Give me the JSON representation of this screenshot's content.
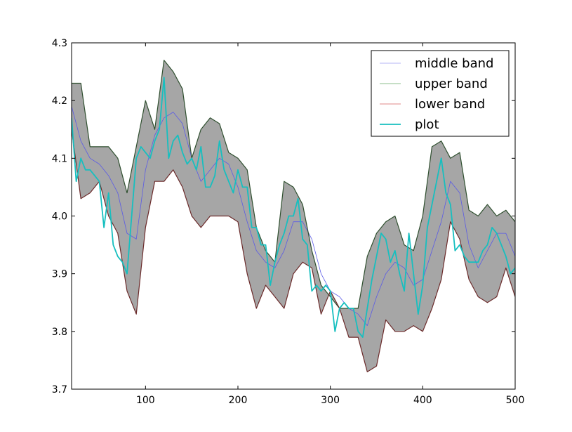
{
  "chart_data": {
    "type": "line",
    "title": "",
    "xlabel": "",
    "ylabel": "",
    "xlim": [
      20,
      500
    ],
    "ylim": [
      3.7,
      4.3
    ],
    "xticks": [
      100,
      200,
      300,
      400,
      500
    ],
    "xtick_labels": [
      "100",
      "200",
      "300",
      "400",
      "500"
    ],
    "yticks": [
      3.7,
      3.8,
      3.9,
      4.0,
      4.1,
      4.2,
      4.3
    ],
    "ytick_labels": [
      "3.7",
      "3.8",
      "3.9",
      "4.0",
      "4.1",
      "4.2",
      "4.3"
    ],
    "grid": false,
    "legend": {
      "position": "top-right",
      "entries": [
        "middle band",
        "upper band",
        "lower band",
        "plot"
      ]
    },
    "band_fill_color": "#a6a6a6",
    "series": [
      {
        "name": "middle band",
        "color": "#5b5be6",
        "x": [
          20,
          30,
          40,
          50,
          60,
          70,
          80,
          90,
          100,
          110,
          120,
          130,
          140,
          150,
          160,
          170,
          180,
          190,
          200,
          210,
          220,
          230,
          240,
          250,
          260,
          270,
          280,
          290,
          300,
          310,
          320,
          330,
          340,
          350,
          360,
          370,
          380,
          390,
          400,
          410,
          420,
          430,
          440,
          450,
          460,
          470,
          480,
          490,
          500
        ],
        "values": [
          4.19,
          4.13,
          4.1,
          4.09,
          4.07,
          4.04,
          3.97,
          3.96,
          4.08,
          4.14,
          4.17,
          4.18,
          4.16,
          4.1,
          4.06,
          4.08,
          4.1,
          4.09,
          4.05,
          3.99,
          3.94,
          3.92,
          3.91,
          3.94,
          3.99,
          3.99,
          3.96,
          3.9,
          3.87,
          3.86,
          3.84,
          3.83,
          3.81,
          3.86,
          3.9,
          3.92,
          3.91,
          3.88,
          3.89,
          3.94,
          3.99,
          4.06,
          4.04,
          3.95,
          3.91,
          3.94,
          3.97,
          3.97,
          3.93
        ]
      },
      {
        "name": "upper band",
        "color": "#2f4f2f",
        "x": [
          20,
          30,
          40,
          50,
          60,
          70,
          80,
          90,
          100,
          110,
          120,
          130,
          140,
          150,
          160,
          170,
          180,
          190,
          200,
          210,
          220,
          230,
          240,
          250,
          260,
          270,
          280,
          290,
          300,
          310,
          320,
          330,
          340,
          350,
          360,
          370,
          380,
          390,
          400,
          410,
          420,
          430,
          440,
          450,
          460,
          470,
          480,
          490,
          500
        ],
        "values": [
          4.23,
          4.23,
          4.12,
          4.12,
          4.12,
          4.1,
          4.04,
          4.12,
          4.2,
          4.15,
          4.27,
          4.25,
          4.22,
          4.1,
          4.15,
          4.17,
          4.16,
          4.11,
          4.1,
          4.08,
          3.98,
          3.94,
          3.92,
          4.06,
          4.05,
          4.02,
          3.94,
          3.88,
          3.86,
          3.84,
          3.84,
          3.84,
          3.93,
          3.97,
          3.99,
          4.0,
          3.95,
          3.94,
          4.0,
          4.12,
          4.13,
          4.1,
          4.11,
          4.01,
          4.0,
          4.02,
          4.0,
          4.01,
          3.99
        ]
      },
      {
        "name": "lower band",
        "color": "#6b2a2a",
        "x": [
          20,
          30,
          40,
          50,
          60,
          70,
          80,
          90,
          100,
          110,
          120,
          130,
          140,
          150,
          160,
          170,
          180,
          190,
          200,
          210,
          220,
          230,
          240,
          250,
          260,
          270,
          280,
          290,
          300,
          310,
          320,
          330,
          340,
          350,
          360,
          370,
          380,
          390,
          400,
          410,
          420,
          430,
          440,
          450,
          460,
          470,
          480,
          490,
          500
        ],
        "values": [
          4.15,
          4.03,
          4.04,
          4.06,
          4.0,
          3.97,
          3.87,
          3.83,
          3.98,
          4.06,
          4.06,
          4.08,
          4.05,
          4.0,
          3.98,
          4.0,
          4.0,
          4.0,
          3.99,
          3.9,
          3.84,
          3.88,
          3.86,
          3.84,
          3.9,
          3.92,
          3.91,
          3.83,
          3.87,
          3.84,
          3.79,
          3.79,
          3.73,
          3.74,
          3.82,
          3.8,
          3.8,
          3.81,
          3.8,
          3.84,
          3.89,
          3.99,
          3.96,
          3.89,
          3.86,
          3.85,
          3.86,
          3.91,
          3.86
        ]
      },
      {
        "name": "plot",
        "color": "#17bfbf",
        "x": [
          20,
          25,
          30,
          35,
          40,
          45,
          50,
          55,
          60,
          65,
          70,
          75,
          80,
          85,
          90,
          95,
          100,
          105,
          110,
          115,
          120,
          125,
          130,
          135,
          140,
          145,
          150,
          155,
          160,
          165,
          170,
          175,
          180,
          185,
          190,
          195,
          200,
          205,
          210,
          215,
          220,
          225,
          230,
          235,
          240,
          245,
          250,
          255,
          260,
          265,
          270,
          275,
          280,
          285,
          290,
          295,
          300,
          305,
          310,
          315,
          320,
          325,
          330,
          335,
          340,
          345,
          350,
          355,
          360,
          365,
          370,
          375,
          380,
          385,
          390,
          395,
          400,
          405,
          410,
          415,
          420,
          425,
          430,
          435,
          440,
          445,
          450,
          455,
          460,
          465,
          470,
          475,
          480,
          485,
          490,
          495,
          500
        ],
        "values": [
          4.17,
          4.06,
          4.1,
          4.08,
          4.08,
          4.07,
          4.06,
          3.98,
          4.04,
          3.95,
          3.93,
          3.92,
          3.9,
          4.0,
          4.1,
          4.12,
          4.11,
          4.1,
          4.13,
          4.15,
          4.24,
          4.1,
          4.13,
          4.14,
          4.11,
          4.09,
          4.1,
          4.08,
          4.12,
          4.05,
          4.05,
          4.07,
          4.13,
          4.08,
          4.06,
          4.04,
          4.08,
          4.05,
          4.05,
          3.98,
          3.98,
          3.95,
          3.95,
          3.88,
          3.92,
          3.95,
          3.97,
          4.0,
          4.0,
          4.03,
          3.96,
          3.95,
          3.87,
          3.88,
          3.87,
          3.88,
          3.87,
          3.8,
          3.84,
          3.85,
          3.84,
          3.84,
          3.8,
          3.79,
          3.84,
          3.89,
          3.93,
          3.97,
          3.96,
          3.92,
          3.94,
          3.9,
          3.87,
          3.97,
          3.9,
          3.83,
          3.88,
          3.98,
          4.02,
          4.06,
          4.1,
          4.04,
          4.02,
          3.94,
          3.95,
          3.93,
          3.92,
          3.92,
          3.92,
          3.94,
          3.95,
          3.98,
          3.97,
          3.95,
          3.93,
          3.9,
          3.91
        ]
      }
    ]
  }
}
